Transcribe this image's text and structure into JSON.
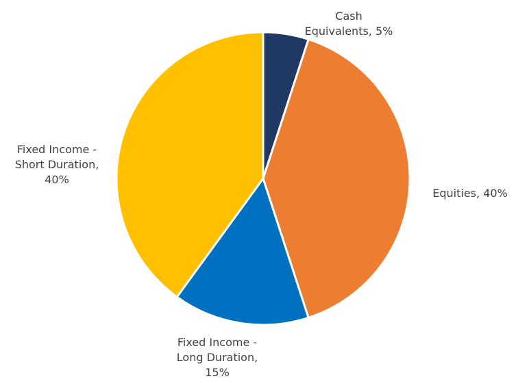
{
  "chart_data": {
    "type": "pie",
    "title": "",
    "legend": "none",
    "start_angle_deg": 0,
    "direction": "clockwise",
    "slices": [
      {
        "label_lines": [
          "Cash",
          "Equivalents, 5%"
        ],
        "value": 5,
        "color": "#203864"
      },
      {
        "label_lines": [
          "Equities, 40%"
        ],
        "value": 40,
        "color": "#ED7D31"
      },
      {
        "label_lines": [
          "Fixed Income -",
          "Long Duration,",
          "15%"
        ],
        "value": 15,
        "color": "#0070C0"
      },
      {
        "label_lines": [
          "Fixed Income -",
          "Short Duration,",
          "40%"
        ],
        "value": 40,
        "color": "#FFC000"
      }
    ]
  }
}
